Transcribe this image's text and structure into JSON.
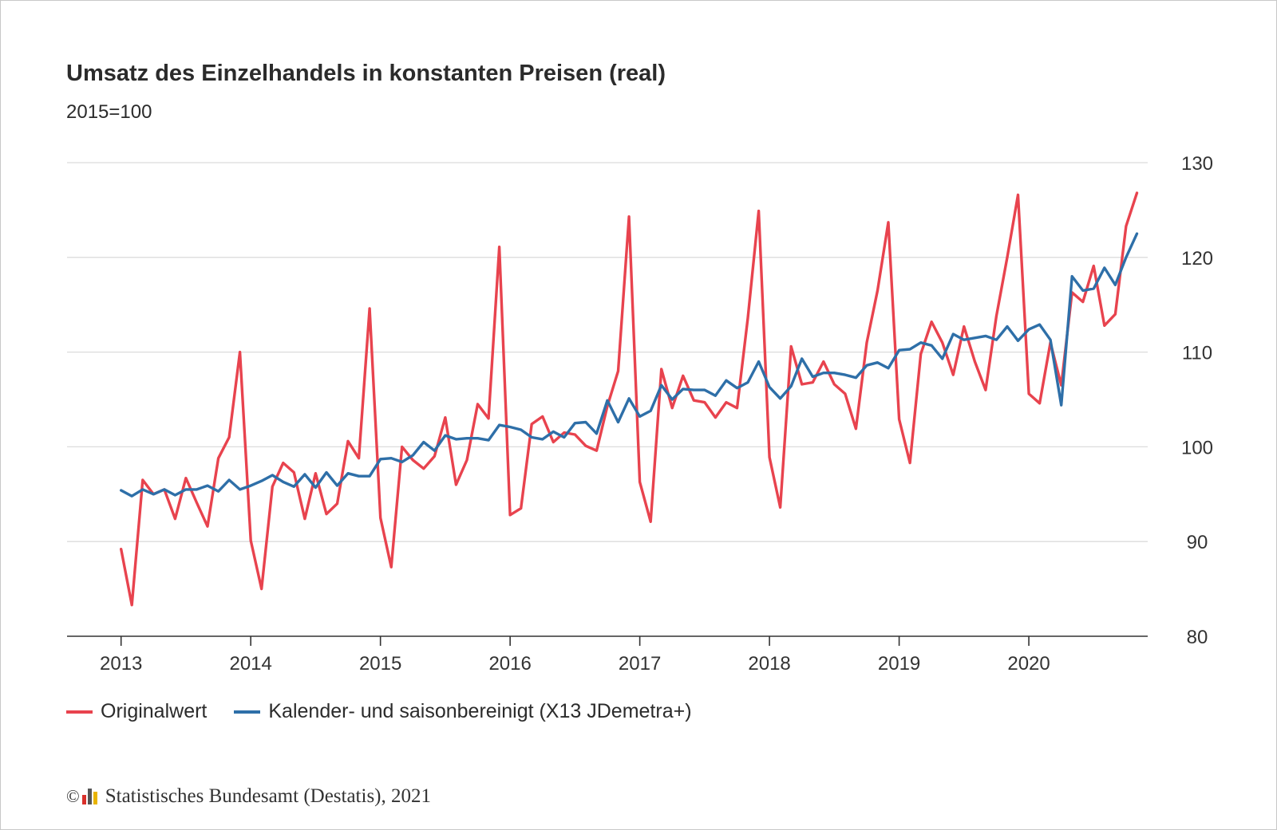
{
  "chart": {
    "title": "Umsatz des Einzelhandels in konstanten Preisen (real)",
    "subtitle": "2015=100",
    "footer": {
      "copyright_symbol": "©",
      "source": "Statistisches Bundesamt (Destatis), 2021"
    }
  },
  "colors": {
    "original": "#e8434e",
    "adjusted": "#2e6fa8",
    "grid": "#dcdcdc",
    "axis": "#333333",
    "logo": [
      "#d9302b",
      "#555555",
      "#e8b400"
    ]
  },
  "chart_data": {
    "type": "line",
    "title": "Umsatz des Einzelhandels in konstanten Preisen (real)",
    "subtitle": "2015=100",
    "xlabel": "",
    "ylabel": "",
    "x_tick_labels": [
      "2013",
      "2014",
      "2015",
      "2016",
      "2017",
      "2018",
      "2019",
      "2020"
    ],
    "y_ticks": [
      80,
      90,
      100,
      110,
      120,
      130
    ],
    "ylim": [
      80,
      130
    ],
    "xlim": [
      "2012-08",
      "2020-12"
    ],
    "x_start": "2013-01",
    "frequency": "monthly",
    "grid": true,
    "y_axis_side": "right",
    "legend_position": "bottom",
    "series": [
      {
        "name": "Originalwert",
        "color": "#e8434e",
        "values": [
          89.2,
          83.3,
          96.5,
          95.0,
          95.5,
          92.4,
          96.7,
          94.1,
          91.6,
          98.8,
          101.0,
          110.0,
          90.1,
          85.0,
          95.8,
          98.3,
          97.3,
          92.4,
          97.2,
          92.9,
          94.0,
          100.6,
          98.8,
          114.6,
          92.5,
          87.3,
          100.0,
          98.6,
          97.7,
          99.0,
          103.1,
          96.0,
          98.6,
          104.5,
          103.0,
          121.1,
          92.8,
          93.5,
          102.4,
          103.2,
          100.5,
          101.5,
          101.3,
          100.1,
          99.6,
          104.3,
          108.0,
          124.3,
          96.3,
          92.1,
          108.2,
          104.1,
          107.5,
          104.9,
          104.7,
          103.1,
          104.7,
          104.1,
          113.6,
          124.9,
          98.9,
          93.6,
          110.6,
          106.6,
          106.8,
          109.0,
          106.6,
          105.6,
          101.9,
          111.0,
          116.5,
          123.7,
          102.9,
          98.3,
          109.8,
          113.2,
          111.0,
          107.6,
          112.7,
          109.0,
          106.0,
          113.8,
          120.0,
          126.6,
          105.6,
          104.6,
          111.0,
          106.5,
          116.3,
          115.3,
          119.1,
          112.8,
          114.0,
          123.3,
          126.8
        ]
      },
      {
        "name": "Kalender- und saisonbereinigt (X13 JDemetra+)",
        "color": "#2e6fa8",
        "values": [
          95.4,
          94.8,
          95.5,
          95.0,
          95.5,
          94.9,
          95.5,
          95.5,
          95.9,
          95.3,
          96.5,
          95.5,
          95.9,
          96.4,
          97.0,
          96.3,
          95.8,
          97.1,
          95.7,
          97.3,
          95.9,
          97.2,
          96.9,
          96.9,
          98.7,
          98.8,
          98.4,
          99.1,
          100.5,
          99.6,
          101.2,
          100.8,
          100.9,
          100.9,
          100.7,
          102.3,
          102.1,
          101.8,
          101.0,
          100.8,
          101.6,
          101.0,
          102.5,
          102.6,
          101.4,
          104.9,
          102.6,
          105.1,
          103.2,
          103.8,
          106.5,
          105.0,
          106.1,
          106.0,
          106.0,
          105.4,
          107.0,
          106.2,
          106.8,
          109.0,
          106.3,
          105.1,
          106.4,
          109.3,
          107.4,
          107.8,
          107.8,
          107.6,
          107.3,
          108.6,
          108.9,
          108.3,
          110.2,
          110.3,
          111.0,
          110.7,
          109.3,
          111.9,
          111.3,
          111.5,
          111.7,
          111.3,
          112.7,
          111.2,
          112.4,
          112.9,
          111.3,
          104.4,
          118.0,
          116.5,
          116.7,
          118.9,
          117.1,
          120.0,
          122.5
        ]
      }
    ]
  }
}
